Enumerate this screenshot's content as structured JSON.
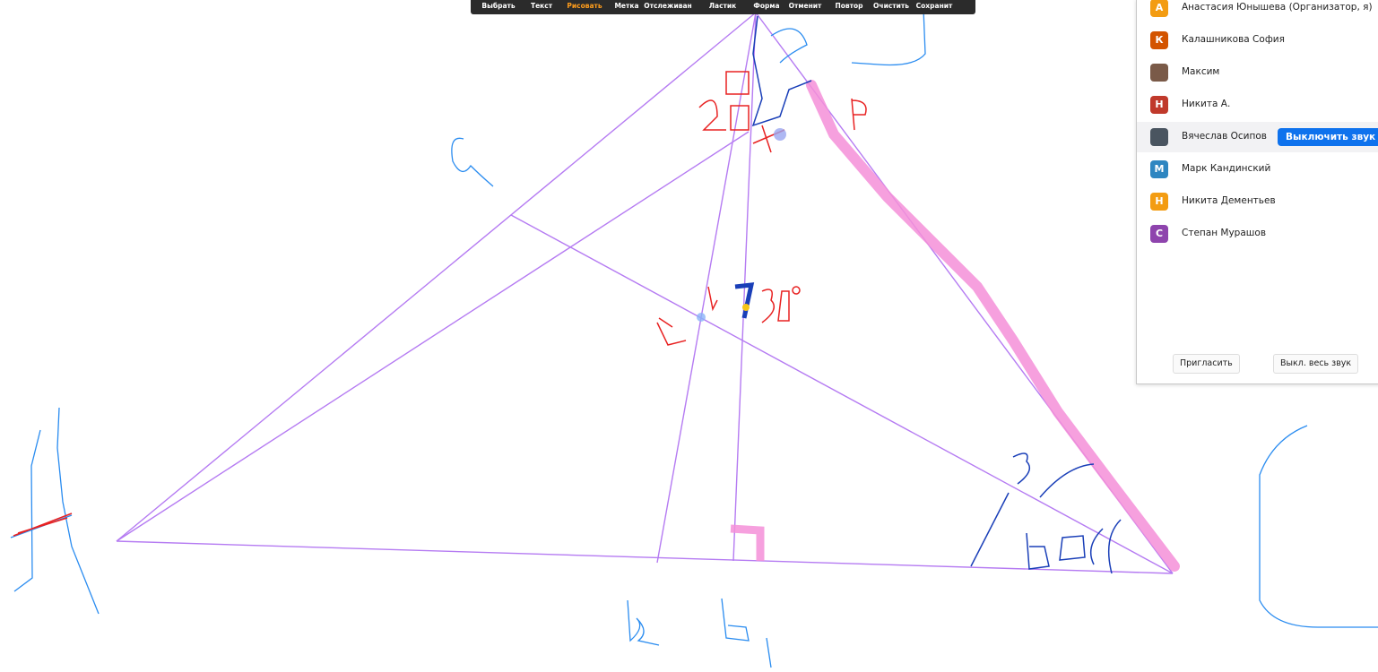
{
  "toolbar": {
    "items": [
      "Выбрать",
      "Текст",
      "Рисовать",
      "Метка",
      "Отслеживан",
      "Ластик",
      "Форма",
      "Отменит",
      "Повтор",
      "Очистить",
      "Сохранит"
    ],
    "active": 2
  },
  "panel": {
    "participants": [
      {
        "initial": "А",
        "name": "Анастасия Юнышева (Организатор, я)",
        "color": "#f39c12"
      },
      {
        "initial": "К",
        "name": "Калашникова София",
        "color": "#d35400"
      },
      {
        "name": "Максим",
        "color": "#7a5a48"
      },
      {
        "initial": "Н",
        "name": "Никита А.",
        "color": "#c0392b"
      },
      {
        "name": "Вячеслав Осипов",
        "color": "#4a5560"
      },
      {
        "initial": "М",
        "name": "Марк Кандинский",
        "color": "#2e86c1"
      },
      {
        "initial": "Н",
        "name": "Никита Дементьев",
        "color": "#f39c12"
      },
      {
        "initial": "С",
        "name": "Степан Мурашов",
        "color": "#8e44ad"
      }
    ],
    "mute_button": "Выключить звук",
    "invite": "Пригласить",
    "mute_all": "Выкл. весь звук"
  }
}
